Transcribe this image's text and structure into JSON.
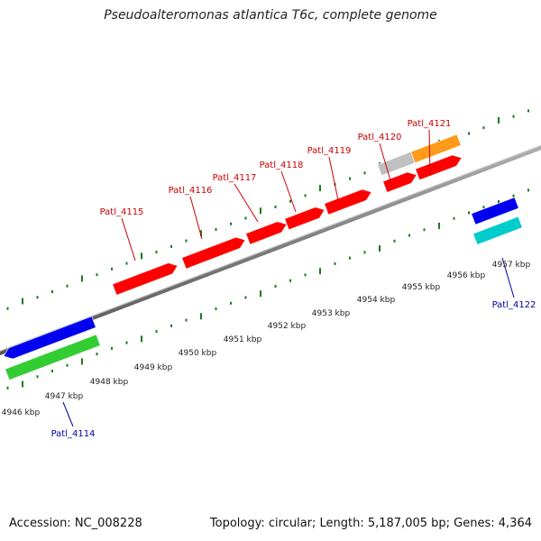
{
  "title": "Pseudoalteromonas atlantica T6c, complete genome",
  "footer": {
    "accession": "Accession: NC_008228",
    "summary": "Topology: circular; Length: 5,187,005 bp; Genes: 4,364"
  },
  "colors": {
    "backbone": "#808080",
    "tick": "#1a7a1a",
    "forward_label": "#cc0000",
    "reverse_label": "#00009c",
    "kbp_label": "#222222"
  },
  "scale_labels": [
    "4946 kbp",
    "4947 kbp",
    "4948 kbp",
    "4949 kbp",
    "4950 kbp",
    "4951 kbp",
    "4952 kbp",
    "4953 kbp",
    "4954 kbp",
    "4955 kbp",
    "4956 kbp",
    "4957 kbp"
  ],
  "genes": [
    {
      "name": "Patl_4115",
      "strand": "forward",
      "color": "#ff0000",
      "labeled": true
    },
    {
      "name": "Patl_4116",
      "strand": "forward",
      "color": "#ff0000",
      "labeled": true
    },
    {
      "name": "Patl_4117",
      "strand": "forward",
      "color": "#ff0000",
      "labeled": true
    },
    {
      "name": "Patl_4118",
      "strand": "forward",
      "color": "#ff0000",
      "labeled": true
    },
    {
      "name": "Patl_4119",
      "strand": "forward",
      "color": "#ff0000",
      "labeled": true
    },
    {
      "name": "Patl_4120",
      "strand": "forward",
      "color": "#ff0000",
      "labeled": true
    },
    {
      "name": "Patl_4121",
      "strand": "forward",
      "color": "#ff0000",
      "labeled": true
    },
    {
      "name": "forward-gray-feature",
      "strand": "forward",
      "color": "#c0c0c0",
      "labeled": false
    },
    {
      "name": "forward-orange-feature",
      "strand": "forward",
      "color": "#ff9a1a",
      "labeled": false
    },
    {
      "name": "Patl_4114",
      "strand": "reverse",
      "color": "#0000ee",
      "labeled": true
    },
    {
      "name": "reverse-green-feature",
      "strand": "reverse",
      "color": "#33cc33",
      "labeled": false
    },
    {
      "name": "Patl_4122",
      "strand": "reverse",
      "color": "#0000ee",
      "labeled": true
    },
    {
      "name": "reverse-cyan-feature",
      "strand": "reverse",
      "color": "#00cccc",
      "labeled": false
    }
  ]
}
